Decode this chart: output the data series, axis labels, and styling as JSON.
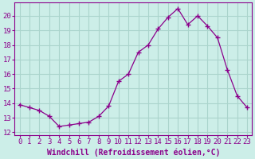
{
  "x": [
    0,
    1,
    2,
    3,
    4,
    5,
    6,
    7,
    8,
    9,
    10,
    11,
    12,
    13,
    14,
    15,
    16,
    17,
    18,
    19,
    20,
    21,
    22,
    23
  ],
  "y": [
    13.9,
    13.7,
    13.5,
    13.1,
    12.4,
    12.5,
    12.6,
    12.7,
    13.1,
    13.8,
    15.5,
    16.0,
    17.5,
    18.0,
    19.1,
    19.9,
    20.5,
    19.4,
    20.0,
    19.3,
    18.5,
    16.3,
    14.5,
    13.7
  ],
  "line_color": "#8B008B",
  "marker": "P",
  "marker_size": 3,
  "marker_color": "#8B008B",
  "bg_color": "#cceee8",
  "grid_color": "#aad4cc",
  "xlabel": "Windchill (Refroidissement éolien,°C)",
  "xlabel_fontsize": 7,
  "xticks": [
    0,
    1,
    2,
    3,
    4,
    5,
    6,
    7,
    8,
    9,
    10,
    11,
    12,
    13,
    14,
    15,
    16,
    17,
    18,
    19,
    20,
    21,
    22,
    23
  ],
  "yticks": [
    12,
    13,
    14,
    15,
    16,
    17,
    18,
    19,
    20
  ],
  "ylim": [
    11.8,
    20.9
  ],
  "xlim": [
    -0.5,
    23.5
  ],
  "tick_fontsize": 6.5,
  "axis_color": "#8B008B",
  "spine_color": "#8B008B"
}
